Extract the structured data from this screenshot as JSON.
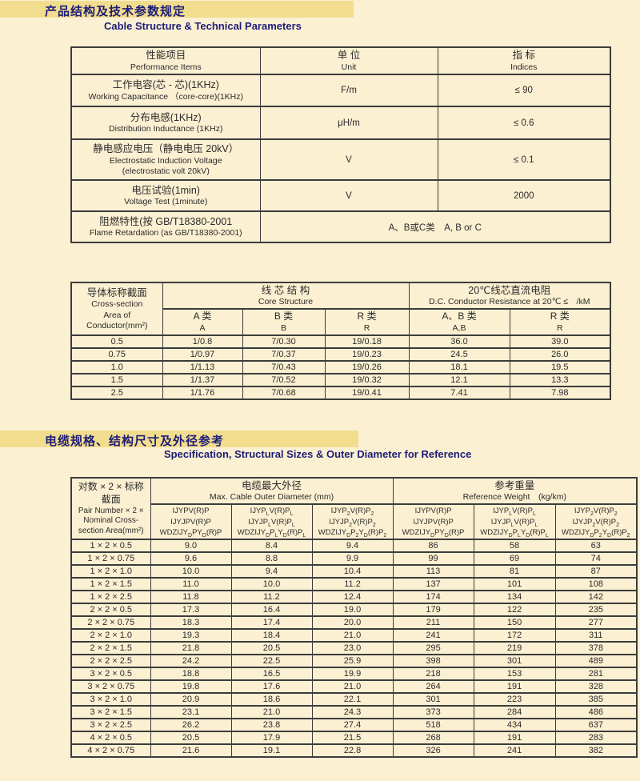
{
  "colors": {
    "background": "#fcf0d2",
    "highlight_band": "#f2dd8e",
    "title_navy": "#1d1d78",
    "text": "#2b2b2b",
    "border": "#3c3c3c"
  },
  "section1": {
    "title_zh": "产品结构及技术参数规定",
    "title_en": "Cable Structure & Technical Parameters",
    "table1": {
      "headers": {
        "item_zh": "性能项目",
        "item_en": "Performance Items",
        "unit_zh": "单 位",
        "unit_en": "Unit",
        "index_zh": "指 标",
        "index_en": "Indices"
      },
      "rows": [
        {
          "zh": "工作电容(芯 - 芯)(1KHz)",
          "en": "Working Capacitance （core-core)(1KHz)",
          "unit": "F/m",
          "value": "≤ 90"
        },
        {
          "zh": "分布电感(1KHz)",
          "en": "Distribution Inductance (1KHz)",
          "unit": "μH/m",
          "value": "≤ 0.6"
        },
        {
          "zh": "静电感应电压（静电电压 20kV）",
          "en": "Electrostatic Induction Voltage",
          "en2": "(electrostatic volt 20kV)",
          "unit": "V",
          "value": "≤ 0.1"
        },
        {
          "zh": "电压试验(1min)",
          "en": "Voltage Test (1minute)",
          "unit": "V",
          "value": "2000"
        },
        {
          "zh": "阻燃特性(按 GB/T18380-2001",
          "en": "Flame Retardation (as GB/T18380-2001)",
          "merged": "A、B或C类　A, B or C"
        }
      ]
    },
    "table2": {
      "corner": {
        "zh": "导体标称截面",
        "en1": "Cross-section",
        "en2": "Area of Conductor(mm²)"
      },
      "group_core": {
        "zh": "线 芯 结 构",
        "en": "Core Structure"
      },
      "group_res": {
        "zh": "20℃线芯直流电阻",
        "en": "D.C. Conductor Resistance at 20℃ ≤　/kM"
      },
      "subheads": [
        {
          "zh": "A 类",
          "en": "A"
        },
        {
          "zh": "B 类",
          "en": "B"
        },
        {
          "zh": "R 类",
          "en": "R"
        },
        {
          "zh": "A、B 类",
          "en": "A,B"
        },
        {
          "zh": "R 类",
          "en": "R"
        }
      ],
      "rows": [
        [
          "0.5",
          "1/0.8",
          "7/0.30",
          "19/0.18",
          "36.0",
          "39.0"
        ],
        [
          "0.75",
          "1/0.97",
          "7/0.37",
          "19/0.23",
          "24.5",
          "26.0"
        ],
        [
          "1.0",
          "1/1.13",
          "7/0.43",
          "19/0.26",
          "18.1",
          "19.5"
        ],
        [
          "1.5",
          "1/1.37",
          "7/0.52",
          "19/0.32",
          "12.1",
          "13.3"
        ],
        [
          "2.5",
          "1/1.76",
          "7/0.68",
          "19/0.41",
          "7.41",
          "7.98"
        ]
      ]
    }
  },
  "section2": {
    "title_zh": "电缆规格、结构尺寸及外径参考",
    "title_en": "Specification, Structural Sizes & Outer Diameter for Reference",
    "table3": {
      "corner": {
        "zh": "对数 × 2 × 标称截面",
        "en": "Pair Number × 2 × Nominal Cross-section Area(mm²)"
      },
      "group_dia": {
        "zh": "电缆最大外径",
        "en": "Max. Cable Outer Diameter (mm)"
      },
      "group_wt": {
        "zh": "参考重量",
        "en": "Reference Weight　(kg/km)"
      },
      "code_columns": [
        [
          "IJYPV(R)P",
          "IJYJPV(R)P",
          "WDZIJY_D_PY_D_(R)P"
        ],
        [
          "IJYP_L_V(R)P_L_",
          "IJYJP_L_V(R)P_L_",
          "WDZIJY_D_P_L_Y_D_(R)P_L_"
        ],
        [
          "IJYP_2_V(R)P_2_",
          "IJYJP_2_V(R)P_2_",
          "WDZIJY_D_P_2_Y_D_(R)P_2_"
        ],
        [
          "IJYPV(R)P",
          "IJYJPV(R)P",
          "WDZIJY_D_PY_D_(R)P"
        ],
        [
          "IJYP_L_V(R)P_L_",
          "IJYJP_L_V(R)P_L_",
          "WDZIJY_D_P_L_Y_D_(R)P_L_"
        ],
        [
          "IJYP_2_V(R)P_2_",
          "IJYJP_2_V(R)P_2_",
          "WDZIJY_D_P_2_Y_D_(R)P_2_"
        ]
      ],
      "rows": [
        [
          "1 × 2 × 0.5",
          "9.0",
          "8.4",
          "9.4",
          "86",
          "58",
          "63"
        ],
        [
          "1 × 2 × 0.75",
          "9.6",
          "8.8",
          "9.9",
          "99",
          "69",
          "74"
        ],
        [
          "1 × 2 × 1.0",
          "10.0",
          "9.4",
          "10.4",
          "113",
          "81",
          "87"
        ],
        [
          "1 × 2 × 1.5",
          "11.0",
          "10.0",
          "11.2",
          "137",
          "101",
          "108"
        ],
        [
          "1 × 2 × 2.5",
          "11.8",
          "11.2",
          "12.4",
          "174",
          "134",
          "142"
        ],
        [
          "2 × 2 × 0.5",
          "17.3",
          "16.4",
          "19.0",
          "179",
          "122",
          "235"
        ],
        [
          "2 × 2 × 0.75",
          "18.3",
          "17.4",
          "20.0",
          "211",
          "150",
          "277"
        ],
        [
          "2 × 2 × 1.0",
          "19.3",
          "18.4",
          "21.0",
          "241",
          "172",
          "311"
        ],
        [
          "2 × 2 × 1.5",
          "21.8",
          "20.5",
          "23.0",
          "295",
          "219",
          "378"
        ],
        [
          "2 × 2 × 2.5",
          "24.2",
          "22.5",
          "25.9",
          "398",
          "301",
          "489"
        ],
        [
          "3 × 2 × 0.5",
          "18.8",
          "16.5",
          "19.9",
          "218",
          "153",
          "281"
        ],
        [
          "3 × 2 × 0.75",
          "19.8",
          "17.6",
          "21.0",
          "264",
          "191",
          "328"
        ],
        [
          "3 × 2 × 1.0",
          "20.9",
          "18.6",
          "22.1",
          "301",
          "223",
          "385"
        ],
        [
          "3 × 2 × 1.5",
          "23.1",
          "21.0",
          "24.3",
          "373",
          "284",
          "486"
        ],
        [
          "3 × 2 × 2.5",
          "26.2",
          "23.8",
          "27.4",
          "518",
          "434",
          "637"
        ],
        [
          "4 × 2 × 0.5",
          "20.5",
          "17.9",
          "21.5",
          "268",
          "191",
          "283"
        ],
        [
          "4 × 2 × 0.75",
          "21.6",
          "19.1",
          "22.8",
          "326",
          "241",
          "382"
        ]
      ]
    }
  }
}
